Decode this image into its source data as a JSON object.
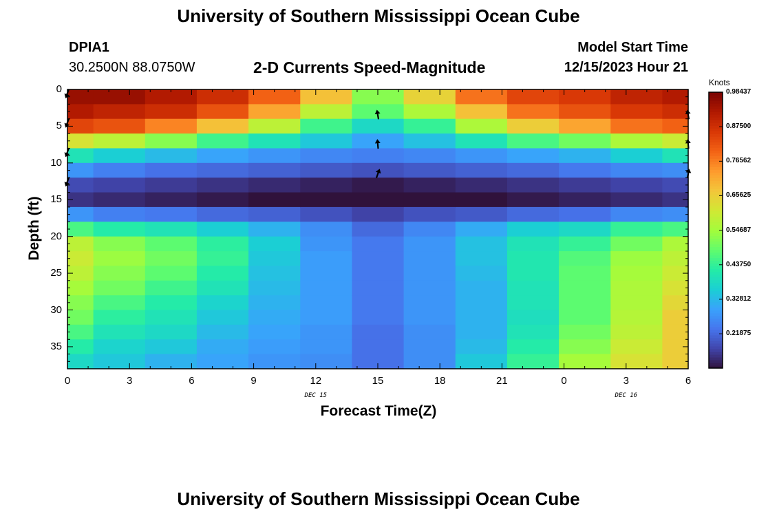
{
  "header": {
    "title": "University of Southern Mississippi Ocean Cube",
    "station": "DPIA1",
    "coordinates": "30.2500N  88.0750W",
    "model_start_label": "Model Start Time",
    "model_start_value": "12/15/2023 Hour 21",
    "footer_title": "University of Southern Mississippi Ocean Cube"
  },
  "colors": {
    "colormap": [
      "#30123b",
      "#4145ab",
      "#4675ed",
      "#39a2fc",
      "#1bcfd4",
      "#24eca6",
      "#61fc6c",
      "#a4fc3b",
      "#d1e834",
      "#f3c63a",
      "#fe9b2d",
      "#f36315",
      "#d93806",
      "#b11901",
      "#7a0402"
    ],
    "arrow": "#000000",
    "axis": "#000000"
  },
  "chart_data": {
    "type": "heatmap",
    "title": "2-D Currents Speed-Magnitude",
    "xlabel": "Forecast Time(Z)",
    "ylabel": "Depth (ft)",
    "x_ticks": [
      {
        "h": 0,
        "label": "0"
      },
      {
        "h": 3,
        "label": "3"
      },
      {
        "h": 6,
        "label": "6"
      },
      {
        "h": 9,
        "label": "9"
      },
      {
        "h": 12,
        "label": "12"
      },
      {
        "h": 15,
        "label": "15"
      },
      {
        "h": 18,
        "label": "18"
      },
      {
        "h": 21,
        "label": "21"
      },
      {
        "h": 24,
        "label": "0"
      },
      {
        "h": 27,
        "label": "3"
      },
      {
        "h": 30,
        "label": "6"
      }
    ],
    "date_labels": [
      {
        "h": 12,
        "label": "DEC 15"
      },
      {
        "h": 27,
        "label": "DEC 16"
      }
    ],
    "y_ticks": [
      0,
      5,
      10,
      15,
      20,
      25,
      30,
      35
    ],
    "xlim": [
      0,
      30
    ],
    "ylim": [
      0,
      38
    ],
    "value_range": [
      0.11,
      0.98437
    ],
    "colorbar": {
      "units": "Knots",
      "ticks": [
        0.21875,
        0.32812,
        0.4375,
        0.54687,
        0.65625,
        0.765625,
        0.875,
        0.98437
      ],
      "tick_labels": [
        "0.21875",
        "0.32812",
        "0.43750",
        "0.54687",
        "0.65625",
        "0.76562",
        "0.87500",
        "0.98437"
      ]
    },
    "time_columns": [
      0,
      2.5,
      5,
      7.5,
      10,
      12.5,
      15,
      17.5,
      20,
      22.5,
      25,
      27.5,
      30
    ],
    "depth_levels": [
      1,
      3,
      5,
      7,
      9,
      11,
      13,
      15,
      17,
      19,
      21,
      23,
      25,
      27,
      29,
      31,
      33,
      35,
      37
    ],
    "speed_knots": [
      [
        0.95,
        0.95,
        0.92,
        0.88,
        0.8,
        0.68,
        0.52,
        0.65,
        0.78,
        0.84,
        0.86,
        0.9,
        0.92
      ],
      [
        0.92,
        0.9,
        0.88,
        0.82,
        0.72,
        0.58,
        0.48,
        0.56,
        0.68,
        0.78,
        0.82,
        0.86,
        0.88
      ],
      [
        0.84,
        0.82,
        0.76,
        0.68,
        0.58,
        0.45,
        0.38,
        0.44,
        0.56,
        0.66,
        0.72,
        0.78,
        0.8
      ],
      [
        0.62,
        0.58,
        0.52,
        0.45,
        0.4,
        0.35,
        0.3,
        0.34,
        0.4,
        0.46,
        0.5,
        0.56,
        0.6
      ],
      [
        0.4,
        0.36,
        0.33,
        0.3,
        0.28,
        0.26,
        0.25,
        0.26,
        0.28,
        0.3,
        0.32,
        0.36,
        0.4
      ],
      [
        0.28,
        0.25,
        0.23,
        0.22,
        0.21,
        0.2,
        0.19,
        0.2,
        0.21,
        0.22,
        0.24,
        0.26,
        0.27
      ],
      [
        0.18,
        0.17,
        0.16,
        0.15,
        0.14,
        0.13,
        0.12,
        0.13,
        0.14,
        0.15,
        0.16,
        0.17,
        0.18
      ],
      [
        0.15,
        0.14,
        0.13,
        0.12,
        0.11,
        0.11,
        0.11,
        0.11,
        0.11,
        0.12,
        0.13,
        0.14,
        0.15
      ],
      [
        0.28,
        0.25,
        0.24,
        0.22,
        0.21,
        0.19,
        0.17,
        0.19,
        0.2,
        0.22,
        0.23,
        0.26,
        0.27
      ],
      [
        0.46,
        0.42,
        0.4,
        0.36,
        0.32,
        0.27,
        0.22,
        0.26,
        0.31,
        0.36,
        0.38,
        0.44,
        0.46
      ],
      [
        0.58,
        0.52,
        0.48,
        0.43,
        0.36,
        0.28,
        0.24,
        0.28,
        0.34,
        0.4,
        0.44,
        0.5,
        0.56
      ],
      [
        0.6,
        0.54,
        0.5,
        0.44,
        0.35,
        0.29,
        0.24,
        0.28,
        0.34,
        0.41,
        0.47,
        0.54,
        0.58
      ],
      [
        0.58,
        0.52,
        0.48,
        0.42,
        0.34,
        0.29,
        0.24,
        0.28,
        0.33,
        0.41,
        0.48,
        0.55,
        0.6
      ],
      [
        0.55,
        0.5,
        0.45,
        0.4,
        0.33,
        0.29,
        0.24,
        0.28,
        0.32,
        0.4,
        0.48,
        0.56,
        0.62
      ],
      [
        0.52,
        0.46,
        0.42,
        0.37,
        0.32,
        0.29,
        0.24,
        0.28,
        0.32,
        0.4,
        0.48,
        0.56,
        0.64
      ],
      [
        0.5,
        0.43,
        0.4,
        0.35,
        0.31,
        0.29,
        0.24,
        0.28,
        0.32,
        0.39,
        0.48,
        0.57,
        0.66
      ],
      [
        0.46,
        0.4,
        0.38,
        0.33,
        0.3,
        0.28,
        0.23,
        0.27,
        0.32,
        0.4,
        0.5,
        0.58,
        0.66
      ],
      [
        0.42,
        0.37,
        0.35,
        0.31,
        0.29,
        0.28,
        0.23,
        0.27,
        0.33,
        0.42,
        0.52,
        0.6,
        0.66
      ],
      [
        0.38,
        0.35,
        0.32,
        0.3,
        0.28,
        0.27,
        0.23,
        0.27,
        0.35,
        0.44,
        0.55,
        0.62,
        0.66
      ]
    ],
    "arrows": [
      {
        "h": 0,
        "depth": 0.5,
        "dir_deg": 200
      },
      {
        "h": 0,
        "depth": 4.5,
        "dir_deg": 200
      },
      {
        "h": 0,
        "depth": 8.5,
        "dir_deg": 200
      },
      {
        "h": 0,
        "depth": 12.5,
        "dir_deg": 200
      },
      {
        "h": 15,
        "depth": 3.5,
        "dir_deg": 350
      },
      {
        "h": 15,
        "depth": 7.5,
        "dir_deg": 355
      },
      {
        "h": 15,
        "depth": 11.5,
        "dir_deg": 20
      },
      {
        "h": 30,
        "depth": 3.5,
        "dir_deg": 350
      },
      {
        "h": 30,
        "depth": 7.5,
        "dir_deg": 355
      },
      {
        "h": 30,
        "depth": 11.5,
        "dir_deg": 10
      }
    ]
  }
}
